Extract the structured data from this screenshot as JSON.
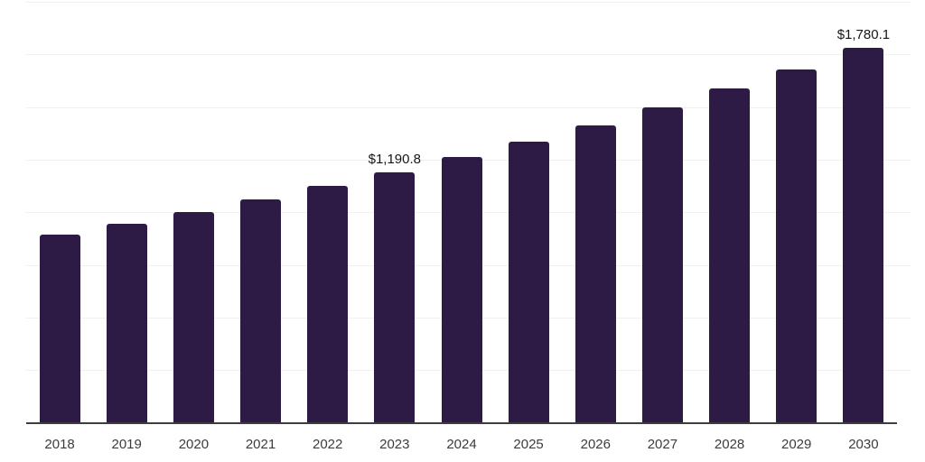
{
  "chart_data": {
    "type": "bar",
    "title": "",
    "xlabel": "",
    "ylabel": "",
    "categories": [
      "2018",
      "2019",
      "2020",
      "2021",
      "2022",
      "2023",
      "2024",
      "2025",
      "2026",
      "2027",
      "2028",
      "2029",
      "2030"
    ],
    "values": [
      893.7,
      946.5,
      1002.4,
      1061.6,
      1124.4,
      1190.8,
      1261.1,
      1335.6,
      1414.5,
      1498.0,
      1586.5,
      1680.3,
      1780.1
    ],
    "data_labels": [
      {
        "category": "2023",
        "text": "$1,190.8"
      },
      {
        "category": "2030",
        "text": "$1,780.1"
      }
    ],
    "ylim": [
      0,
      2000
    ],
    "y_gridline_step": 250,
    "grid": true,
    "legend": "none",
    "y_axis_tick_labels_shown": false,
    "colors": {
      "bar": "#2d1b45",
      "axis_line": "#3d3d3d",
      "gridline": "#f0f0f1",
      "tick_label": "#3c3c3c",
      "data_label": "#16161a",
      "background": "#ffffff"
    }
  }
}
